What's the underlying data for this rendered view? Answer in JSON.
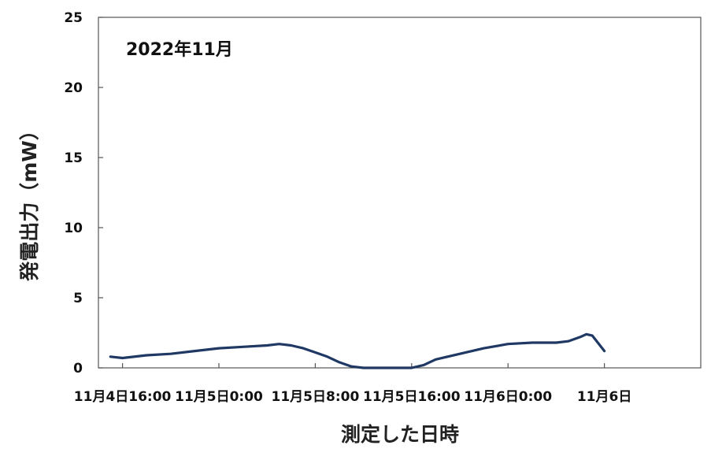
{
  "chart_data": {
    "type": "line",
    "annotation": "2022年11月",
    "xlabel": "測定した日時",
    "ylabel": "発電出力（mW）",
    "ylim": [
      0,
      25
    ],
    "yticks": [
      "0",
      "5",
      "10",
      "15",
      "20",
      "25"
    ],
    "xlim": [
      "2022-11-04T14:00",
      "2022-11-06T16:00"
    ],
    "x_tick_labels": [
      {
        "x": "2022-11-04T16:00",
        "label": "11月4日16:00"
      },
      {
        "x": "2022-11-05T00:00",
        "label": "11月5日0:00"
      },
      {
        "x": "2022-11-05T08:00",
        "label": "11月5日8:00"
      },
      {
        "x": "2022-11-05T16:00",
        "label": "11月5日16:00"
      },
      {
        "x": "2022-11-06T00:00",
        "label": "11月6日0:00"
      },
      {
        "x": "2022-11-06T08:00",
        "label": "11月6日"
      }
    ],
    "grid": false,
    "series": [
      {
        "color": "#1f3864",
        "x": [
          "2022-11-04T15:00",
          "2022-11-04T16:00",
          "2022-11-04T18:00",
          "2022-11-04T20:00",
          "2022-11-04T22:00",
          "2022-11-05T00:00",
          "2022-11-05T02:00",
          "2022-11-05T04:00",
          "2022-11-05T05:00",
          "2022-11-05T06:00",
          "2022-11-05T07:00",
          "2022-11-05T08:00",
          "2022-11-05T09:00",
          "2022-11-05T10:00",
          "2022-11-05T11:00",
          "2022-11-05T12:00",
          "2022-11-05T14:00",
          "2022-11-05T15:00",
          "2022-11-05T16:00",
          "2022-11-05T17:00",
          "2022-11-05T18:00",
          "2022-11-05T20:00",
          "2022-11-05T22:00",
          "2022-11-06T00:00",
          "2022-11-06T02:00",
          "2022-11-06T04:00",
          "2022-11-06T05:00",
          "2022-11-06T06:00",
          "2022-11-06T06:30",
          "2022-11-06T07:00",
          "2022-11-06T08:00"
        ],
        "values": [
          0.8,
          0.7,
          0.9,
          1.0,
          1.2,
          1.4,
          1.5,
          1.6,
          1.7,
          1.6,
          1.4,
          1.1,
          0.8,
          0.4,
          0.1,
          0.0,
          0.0,
          0.0,
          0.0,
          0.2,
          0.6,
          1.0,
          1.4,
          1.7,
          1.8,
          1.8,
          1.9,
          2.2,
          2.4,
          2.3,
          1.2
        ]
      }
    ]
  }
}
